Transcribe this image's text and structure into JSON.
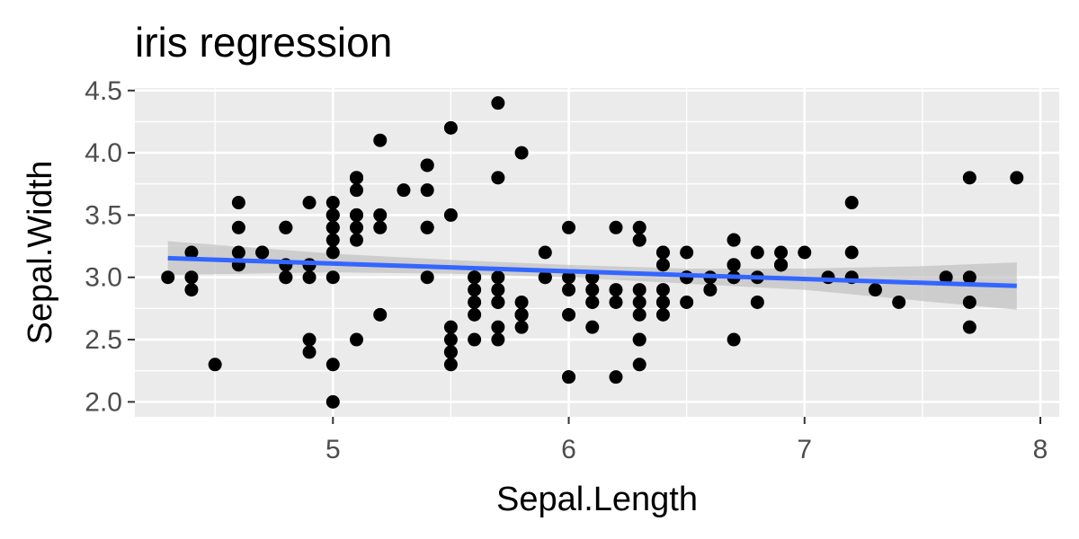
{
  "chart_data": {
    "type": "scatter",
    "title": "iris regression",
    "xlabel": "Sepal.Length",
    "ylabel": "Sepal.Width",
    "xlim": [
      4.16,
      8.08
    ],
    "ylim": [
      1.88,
      4.52
    ],
    "xticks": [
      5,
      6,
      7,
      8
    ],
    "yticks": [
      2.0,
      2.5,
      3.0,
      3.5,
      4.0,
      4.5
    ],
    "ytick_labels": [
      "2.0",
      "2.5",
      "3.0",
      "3.5",
      "4.0",
      "4.5"
    ],
    "grid": true,
    "panel_background": "#ebebeb",
    "point_color": "#000000",
    "points": [
      [
        5.1,
        3.5
      ],
      [
        4.9,
        3.0
      ],
      [
        4.7,
        3.2
      ],
      [
        4.6,
        3.1
      ],
      [
        5.0,
        3.6
      ],
      [
        5.4,
        3.9
      ],
      [
        4.6,
        3.4
      ],
      [
        5.0,
        3.4
      ],
      [
        4.4,
        2.9
      ],
      [
        4.9,
        3.1
      ],
      [
        5.4,
        3.7
      ],
      [
        4.8,
        3.4
      ],
      [
        4.8,
        3.0
      ],
      [
        4.3,
        3.0
      ],
      [
        5.8,
        4.0
      ],
      [
        5.7,
        4.4
      ],
      [
        5.4,
        3.9
      ],
      [
        5.1,
        3.5
      ],
      [
        5.7,
        3.8
      ],
      [
        5.1,
        3.8
      ],
      [
        5.4,
        3.4
      ],
      [
        5.1,
        3.7
      ],
      [
        4.6,
        3.6
      ],
      [
        5.1,
        3.3
      ],
      [
        4.8,
        3.4
      ],
      [
        5.0,
        3.0
      ],
      [
        5.0,
        3.4
      ],
      [
        5.2,
        3.5
      ],
      [
        5.2,
        3.4
      ],
      [
        4.7,
        3.2
      ],
      [
        4.8,
        3.1
      ],
      [
        5.4,
        3.4
      ],
      [
        5.2,
        4.1
      ],
      [
        5.5,
        4.2
      ],
      [
        4.9,
        3.1
      ],
      [
        5.0,
        3.2
      ],
      [
        5.5,
        3.5
      ],
      [
        4.9,
        3.6
      ],
      [
        4.4,
        3.0
      ],
      [
        5.1,
        3.4
      ],
      [
        5.0,
        3.5
      ],
      [
        4.5,
        2.3
      ],
      [
        4.4,
        3.2
      ],
      [
        5.0,
        3.5
      ],
      [
        5.1,
        3.8
      ],
      [
        4.8,
        3.0
      ],
      [
        5.1,
        3.8
      ],
      [
        4.6,
        3.2
      ],
      [
        5.3,
        3.7
      ],
      [
        5.0,
        3.3
      ],
      [
        7.0,
        3.2
      ],
      [
        6.4,
        3.2
      ],
      [
        6.9,
        3.1
      ],
      [
        5.5,
        2.3
      ],
      [
        6.5,
        2.8
      ],
      [
        5.7,
        2.8
      ],
      [
        6.3,
        3.3
      ],
      [
        4.9,
        2.4
      ],
      [
        6.6,
        2.9
      ],
      [
        5.2,
        2.7
      ],
      [
        5.0,
        2.0
      ],
      [
        5.9,
        3.0
      ],
      [
        6.0,
        2.2
      ],
      [
        6.1,
        2.9
      ],
      [
        5.6,
        2.9
      ],
      [
        6.7,
        3.1
      ],
      [
        5.6,
        3.0
      ],
      [
        5.8,
        2.7
      ],
      [
        6.2,
        2.2
      ],
      [
        5.6,
        2.5
      ],
      [
        5.9,
        3.2
      ],
      [
        6.1,
        2.8
      ],
      [
        6.3,
        2.5
      ],
      [
        6.1,
        2.8
      ],
      [
        6.4,
        2.9
      ],
      [
        6.6,
        3.0
      ],
      [
        6.8,
        2.8
      ],
      [
        6.7,
        3.0
      ],
      [
        6.0,
        2.9
      ],
      [
        5.7,
        2.6
      ],
      [
        5.5,
        2.4
      ],
      [
        5.5,
        2.4
      ],
      [
        5.8,
        2.7
      ],
      [
        6.0,
        2.7
      ],
      [
        5.4,
        3.0
      ],
      [
        6.0,
        3.4
      ],
      [
        6.7,
        3.1
      ],
      [
        6.3,
        2.3
      ],
      [
        5.6,
        3.0
      ],
      [
        5.5,
        2.5
      ],
      [
        5.5,
        2.6
      ],
      [
        6.1,
        3.0
      ],
      [
        5.8,
        2.6
      ],
      [
        5.0,
        2.3
      ],
      [
        5.6,
        2.7
      ],
      [
        5.7,
        3.0
      ],
      [
        5.7,
        2.9
      ],
      [
        6.2,
        2.9
      ],
      [
        5.1,
        2.5
      ],
      [
        5.7,
        2.8
      ],
      [
        6.3,
        3.3
      ],
      [
        5.8,
        2.7
      ],
      [
        7.1,
        3.0
      ],
      [
        6.3,
        2.9
      ],
      [
        6.5,
        3.0
      ],
      [
        7.6,
        3.0
      ],
      [
        4.9,
        2.5
      ],
      [
        7.3,
        2.9
      ],
      [
        6.7,
        2.5
      ],
      [
        7.2,
        3.6
      ],
      [
        6.5,
        3.2
      ],
      [
        6.4,
        2.7
      ],
      [
        6.8,
        3.0
      ],
      [
        5.7,
        2.5
      ],
      [
        5.8,
        2.8
      ],
      [
        6.4,
        3.2
      ],
      [
        6.5,
        3.0
      ],
      [
        7.7,
        3.8
      ],
      [
        7.7,
        2.6
      ],
      [
        6.0,
        2.2
      ],
      [
        6.9,
        3.2
      ],
      [
        5.6,
        2.8
      ],
      [
        7.7,
        2.8
      ],
      [
        6.3,
        2.7
      ],
      [
        6.7,
        3.3
      ],
      [
        7.2,
        3.2
      ],
      [
        6.2,
        2.8
      ],
      [
        6.1,
        3.0
      ],
      [
        6.4,
        2.8
      ],
      [
        7.2,
        3.0
      ],
      [
        7.4,
        2.8
      ],
      [
        7.9,
        3.8
      ],
      [
        6.4,
        2.8
      ],
      [
        6.3,
        2.8
      ],
      [
        6.1,
        2.6
      ],
      [
        7.7,
        3.0
      ],
      [
        6.3,
        3.4
      ],
      [
        6.4,
        3.1
      ],
      [
        6.0,
        3.0
      ],
      [
        6.9,
        3.1
      ],
      [
        6.7,
        3.1
      ],
      [
        6.9,
        3.1
      ],
      [
        5.8,
        2.7
      ],
      [
        6.8,
        3.2
      ],
      [
        6.7,
        3.3
      ],
      [
        6.7,
        3.0
      ],
      [
        6.3,
        2.5
      ],
      [
        6.5,
        3.0
      ],
      [
        6.2,
        3.4
      ],
      [
        5.9,
        3.0
      ]
    ],
    "regression_line": {
      "color": "#3366FF",
      "x": [
        4.3,
        7.9
      ],
      "y": [
        3.154,
        2.931
      ]
    },
    "confidence_band": {
      "color": "#bdbdbd",
      "x": [
        4.3,
        5.0,
        5.5,
        6.0,
        6.5,
        7.0,
        7.5,
        7.9
      ],
      "upper": [
        3.29,
        3.19,
        3.14,
        3.1,
        3.07,
        3.07,
        3.09,
        3.12
      ],
      "lower": [
        3.02,
        3.04,
        3.03,
        3.0,
        2.95,
        2.9,
        2.81,
        2.74
      ]
    }
  }
}
